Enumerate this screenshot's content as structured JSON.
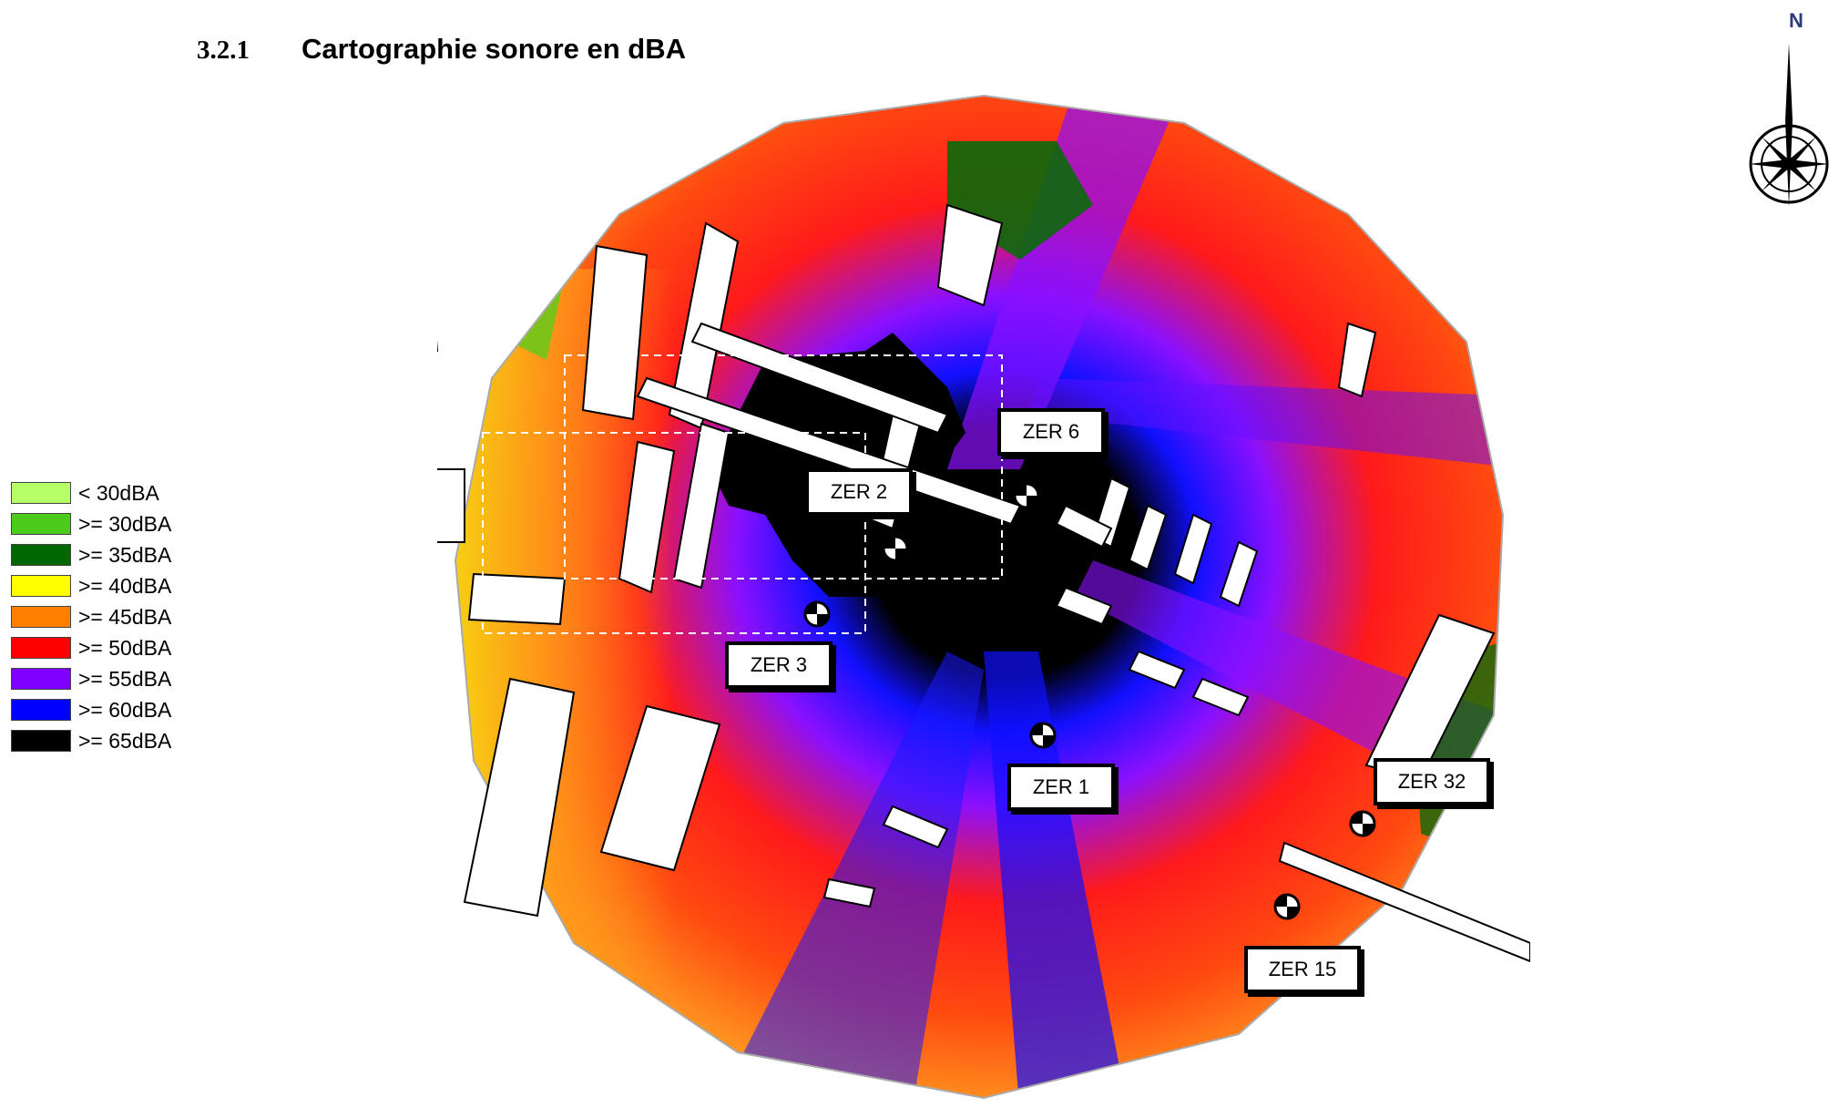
{
  "heading": {
    "number": "3.2.1",
    "title": "Cartographie sonore en dBA"
  },
  "north": {
    "letter": "N"
  },
  "legend": [
    {
      "label": "< 30dBA",
      "color": "#b6ff66"
    },
    {
      "label": ">= 30dBA",
      "color": "#4ccc1a"
    },
    {
      "label": ">= 35dBA",
      "color": "#006600"
    },
    {
      "label": ">= 40dBA",
      "color": "#ffff00"
    },
    {
      "label": ">= 45dBA",
      "color": "#ff8000"
    },
    {
      "label": ">= 50dBA",
      "color": "#ff0000"
    },
    {
      "label": ">= 55dBA",
      "color": "#8000ff"
    },
    {
      "label": ">= 60dBA",
      "color": "#0000ff"
    },
    {
      "label": ">= 65dBA",
      "color": "#000000"
    }
  ],
  "receivers": [
    {
      "label": "ZER 6"
    },
    {
      "label": "ZER 2"
    },
    {
      "label": "ZER 3"
    },
    {
      "label": "ZER 1"
    },
    {
      "label": "ZER 32"
    },
    {
      "label": "ZER 15"
    }
  ]
}
